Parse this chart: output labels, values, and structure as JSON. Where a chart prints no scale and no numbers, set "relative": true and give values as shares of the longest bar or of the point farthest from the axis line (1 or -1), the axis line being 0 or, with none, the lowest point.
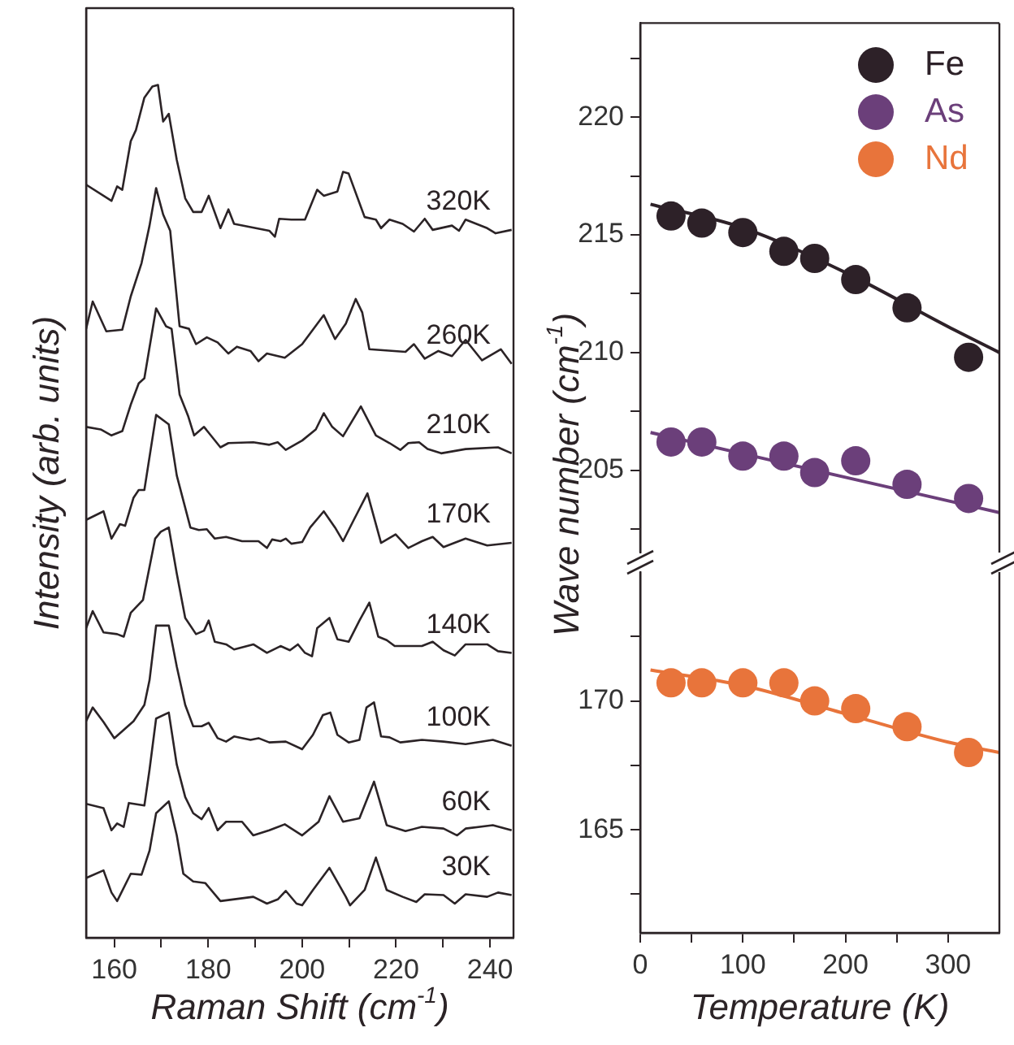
{
  "chart_data": [
    {
      "type": "line",
      "xlabel": "Raman Shift (cm$^{-1}$)",
      "ylabel": "Intensity (arb. units)",
      "relative": true,
      "xlim": [
        154,
        245
      ],
      "xticks": [
        160,
        {
          "value": 170,
          "label": null
        },
        180,
        {
          "value": 190,
          "label": null
        },
        200,
        {
          "value": 210,
          "label": null
        },
        220,
        {
          "value": 230,
          "label": null
        },
        240
      ],
      "grid": false,
      "series": [
        {
          "name": "320K",
          "color": "#2b2326",
          "x": [
            154.0,
            159.4,
            160.6,
            161.7,
            163.5,
            164.6,
            166.4,
            168.1,
            169.3,
            170.4,
            171.6,
            173.3,
            175.1,
            176.8,
            178.6,
            180.1,
            182.6,
            184.3,
            185.5,
            193.0,
            194.2,
            195.1,
            197.7,
            200.6,
            203.2,
            204.6,
            207.5,
            208.7,
            209.9,
            213.3,
            215.7,
            216.8,
            218.6,
            221.4,
            223.8,
            226.1,
            227.8,
            231.9,
            233.4,
            234.8,
            239.4,
            241.2,
            244.6
          ],
          "values": [
            0.883,
            0.864,
            0.881,
            0.877,
            0.934,
            0.947,
            0.985,
            0.998,
            1,
            0.957,
            0.966,
            0.912,
            0.867,
            0.851,
            0.851,
            0.87,
            0.832,
            0.854,
            0.837,
            0.829,
            0.822,
            0.843,
            0.842,
            0.842,
            0.877,
            0.87,
            0.875,
            0.898,
            0.896,
            0.845,
            0.842,
            0.832,
            0.842,
            0.837,
            0.828,
            0.843,
            0.83,
            0.835,
            0.829,
            0.842,
            0.832,
            0.826,
            0.83
          ]
        },
        {
          "name": "260K",
          "color": "#2b2326",
          "x": [
            154.0,
            155.4,
            158.3,
            161.7,
            163.5,
            165.8,
            167.5,
            168.9,
            170.4,
            171.9,
            173.9,
            175.9,
            177.4,
            179.7,
            182.0,
            184.3,
            186.1,
            189.0,
            190.7,
            192.5,
            196.3,
            200.0,
            204.6,
            207.0,
            209.3,
            211.4,
            212.8,
            214.3,
            222.0,
            223.8,
            226.1,
            229.0,
            231.9,
            234.8,
            238.3,
            242.3,
            244.6
          ],
          "values": [
            0.714,
            0.746,
            0.711,
            0.713,
            0.752,
            0.791,
            0.835,
            0.879,
            0.848,
            0.829,
            0.717,
            0.714,
            0.696,
            0.704,
            0.698,
            0.685,
            0.693,
            0.688,
            0.676,
            0.685,
            0.68,
            0.696,
            0.73,
            0.702,
            0.72,
            0.749,
            0.733,
            0.69,
            0.687,
            0.696,
            0.679,
            0.688,
            0.682,
            0.701,
            0.677,
            0.69,
            0.673
          ]
        },
        {
          "name": "210K",
          "color": "#2b2326",
          "x": [
            154.0,
            157.1,
            159.4,
            161.7,
            163.5,
            165.2,
            166.4,
            168.9,
            171.0,
            172.2,
            173.9,
            175.7,
            177.0,
            179.1,
            182.6,
            184.3,
            189.6,
            193.0,
            194.8,
            196.5,
            200.0,
            202.9,
            204.6,
            206.4,
            208.7,
            212.5,
            215.7,
            218.6,
            220.9,
            222.6,
            224.9,
            226.7,
            229.6,
            234.8,
            241.7,
            244.6
          ],
          "values": [
            0.599,
            0.596,
            0.589,
            0.594,
            0.625,
            0.65,
            0.656,
            0.738,
            0.717,
            0.714,
            0.637,
            0.612,
            0.589,
            0.599,
            0.575,
            0.58,
            0.581,
            0.578,
            0.581,
            0.572,
            0.583,
            0.596,
            0.615,
            0.599,
            0.588,
            0.623,
            0.589,
            0.58,
            0.572,
            0.58,
            0.581,
            0.573,
            0.568,
            0.573,
            0.575,
            0.568
          ]
        },
        {
          "name": "170K",
          "color": "#2b2326",
          "x": [
            154.0,
            157.7,
            159.4,
            161.2,
            162.3,
            164.1,
            165.2,
            166.4,
            168.9,
            171.6,
            173.3,
            176.2,
            178.0,
            179.7,
            181.4,
            183.8,
            187.2,
            190.7,
            192.5,
            193.6,
            195.4,
            196.5,
            197.7,
            200.0,
            201.7,
            204.6,
            207.0,
            208.7,
            211.0,
            213.9,
            216.8,
            219.9,
            222.6,
            225.5,
            227.8,
            230.1,
            234.8,
            239.4,
            244.6
          ],
          "values": [
            0.49,
            0.5,
            0.468,
            0.485,
            0.483,
            0.516,
            0.525,
            0.525,
            0.613,
            0.602,
            0.542,
            0.481,
            0.478,
            0.479,
            0.468,
            0.47,
            0.465,
            0.465,
            0.457,
            0.467,
            0.465,
            0.468,
            0.462,
            0.464,
            0.481,
            0.5,
            0.481,
            0.465,
            0.49,
            0.521,
            0.463,
            0.473,
            0.457,
            0.465,
            0.47,
            0.458,
            0.468,
            0.46,
            0.463
          ]
        },
        {
          "name": "140K",
          "color": "#2b2326",
          "x": [
            154.0,
            155.4,
            157.7,
            160.6,
            162.0,
            163.5,
            166.1,
            168.7,
            169.9,
            171.6,
            173.3,
            175.1,
            177.4,
            179.1,
            180.1,
            181.4,
            183.8,
            185.5,
            189.6,
            192.5,
            195.4,
            197.4,
            199.1,
            200.6,
            202.1,
            203.2,
            205.8,
            207.5,
            209.9,
            212.2,
            214.3,
            216.2,
            218.0,
            219.7,
            225.5,
            227.8,
            230.1,
            232.5,
            234.8,
            239.4,
            241.7,
            244.6
          ],
          "values": [
            0.363,
            0.383,
            0.358,
            0.356,
            0.353,
            0.381,
            0.396,
            0.468,
            0.476,
            0.481,
            0.427,
            0.375,
            0.356,
            0.36,
            0.372,
            0.347,
            0.344,
            0.338,
            0.344,
            0.334,
            0.342,
            0.337,
            0.344,
            0.334,
            0.33,
            0.363,
            0.375,
            0.35,
            0.347,
            0.372,
            0.393,
            0.353,
            0.349,
            0.342,
            0.342,
            0.347,
            0.337,
            0.331,
            0.344,
            0.344,
            0.336,
            0.334
          ]
        },
        {
          "name": "100K",
          "color": "#2b2326",
          "x": [
            154.0,
            155.4,
            157.7,
            160.0,
            164.1,
            166.4,
            167.5,
            168.9,
            171.6,
            173.3,
            175.1,
            176.8,
            178.6,
            180.1,
            182.0,
            183.8,
            185.5,
            189.0,
            190.7,
            193.0,
            196.5,
            200.0,
            202.3,
            204.4,
            206.0,
            207.5,
            209.9,
            212.2,
            213.7,
            215.3,
            216.8,
            218.6,
            220.9,
            225.5,
            230.1,
            234.8,
            240.6,
            244.6
          ],
          "values": [
            0.254,
            0.27,
            0.253,
            0.234,
            0.254,
            0.273,
            0.302,
            0.366,
            0.366,
            0.318,
            0.273,
            0.248,
            0.248,
            0.252,
            0.234,
            0.23,
            0.236,
            0.232,
            0.234,
            0.229,
            0.23,
            0.221,
            0.238,
            0.261,
            0.264,
            0.238,
            0.229,
            0.232,
            0.27,
            0.276,
            0.236,
            0.235,
            0.229,
            0.232,
            0.23,
            0.227,
            0.232,
            0.225
          ]
        },
        {
          "name": "60K",
          "color": "#2b2326",
          "x": [
            154.0,
            157.7,
            159.4,
            160.6,
            162.0,
            163.1,
            166.4,
            167.5,
            168.9,
            171.6,
            173.3,
            175.1,
            176.8,
            178.6,
            180.1,
            182.0,
            183.8,
            187.2,
            189.6,
            193.0,
            196.3,
            200.0,
            203.5,
            205.8,
            208.7,
            212.2,
            215.3,
            218.0,
            222.0,
            225.5,
            230.1,
            233.0,
            234.8,
            240.6,
            244.6
          ],
          "values": [
            0.157,
            0.152,
            0.126,
            0.134,
            0.13,
            0.158,
            0.155,
            0.197,
            0.257,
            0.264,
            0.203,
            0.165,
            0.146,
            0.139,
            0.152,
            0.126,
            0.136,
            0.136,
            0.12,
            0.126,
            0.133,
            0.12,
            0.136,
            0.166,
            0.136,
            0.14,
            0.183,
            0.132,
            0.125,
            0.13,
            0.128,
            0.12,
            0.128,
            0.132,
            0.126
          ]
        },
        {
          "name": "30K",
          "color": "#2b2326",
          "x": [
            154.0,
            157.7,
            159.4,
            160.6,
            163.5,
            165.8,
            167.5,
            168.9,
            171.6,
            173.3,
            174.7,
            176.8,
            179.4,
            182.6,
            189.6,
            192.5,
            194.8,
            196.5,
            198.8,
            200.0,
            202.3,
            205.8,
            209.3,
            210.2,
            213.3,
            215.7,
            218.0,
            221.4,
            224.3,
            226.1,
            230.1,
            232.5,
            234.8,
            239.4,
            241.7,
            244.6
          ],
          "values": [
            0.07,
            0.079,
            0.053,
            0.043,
            0.075,
            0.074,
            0.102,
            0.146,
            0.16,
            0.12,
            0.075,
            0.066,
            0.064,
            0.043,
            0.048,
            0.04,
            0.045,
            0.055,
            0.04,
            0.038,
            0.056,
            0.082,
            0.048,
            0.038,
            0.056,
            0.094,
            0.056,
            0.048,
            0.042,
            0.051,
            0.05,
            0.04,
            0.051,
            0.048,
            0.053,
            0.05
          ]
        }
      ]
    },
    {
      "type": "scatter",
      "ylabel": "Wave number (cm$^{-1}$)",
      "xlim": [
        0,
        350
      ],
      "ylim": [
        201.5,
        224
      ],
      "yticks": [
        {
          "value": 202.5,
          "label": null
        },
        205,
        {
          "value": 207.5,
          "label": null
        },
        210,
        {
          "value": 212.5,
          "label": null
        },
        215,
        {
          "value": 217.5,
          "label": null
        },
        220,
        {
          "value": 222.5,
          "label": null
        }
      ],
      "tick_labels": "y",
      "grid": false,
      "legend": "top right",
      "marker": "circle",
      "x": [
        30,
        60,
        100,
        140,
        170,
        210,
        260,
        320
      ],
      "series": [
        {
          "name": "Fe",
          "color": "#2d2128",
          "values": [
            215.8,
            215.5,
            215.1,
            214.3,
            214.0,
            213.1,
            211.9,
            209.8
          ]
        },
        {
          "name": "As",
          "color": "#6b3f7a",
          "values": [
            206.2,
            206.2,
            205.6,
            205.6,
            204.9,
            205.4,
            204.4,
            203.8
          ]
        },
        {
          "type": "line",
          "marker": "none",
          "color": "#2d2128",
          "x": [
            10,
            100,
            200,
            300,
            350
          ],
          "values": [
            216.3,
            215.3,
            213.4,
            211.1,
            210.0
          ]
        },
        {
          "type": "line",
          "marker": "none",
          "color": "#6b3f7a",
          "x": [
            10,
            100,
            200,
            350
          ],
          "values": [
            206.6,
            205.7,
            204.7,
            203.2
          ]
        }
      ]
    },
    {
      "type": "scatter",
      "xlabel": "Temperature (K)",
      "xlim": [
        0,
        350
      ],
      "xticks": [
        0,
        {
          "value": 50,
          "label": null
        },
        100,
        {
          "value": 150,
          "label": null
        },
        200,
        {
          "value": 250,
          "label": null
        },
        300
      ],
      "ylim": [
        161,
        175
      ],
      "yticks": [
        {
          "value": 162.5,
          "label": null
        },
        165,
        {
          "value": 167.5,
          "label": null
        },
        170,
        {
          "value": 172.5,
          "label": null
        }
      ],
      "grid": false,
      "legend": "top right",
      "marker": "circle",
      "x": [
        30,
        60,
        100,
        140,
        170,
        210,
        260,
        320
      ],
      "series": [
        {
          "name": "Nd",
          "color": "#e8743b",
          "values": [
            170.7,
            170.7,
            170.7,
            170.7,
            170.0,
            169.7,
            169.0,
            168.0
          ]
        },
        {
          "type": "line",
          "marker": "none",
          "color": "#e8743b",
          "x": [
            10,
            100,
            200,
            300,
            350
          ],
          "values": [
            171.2,
            170.6,
            169.5,
            168.4,
            168.0
          ]
        }
      ]
    }
  ]
}
